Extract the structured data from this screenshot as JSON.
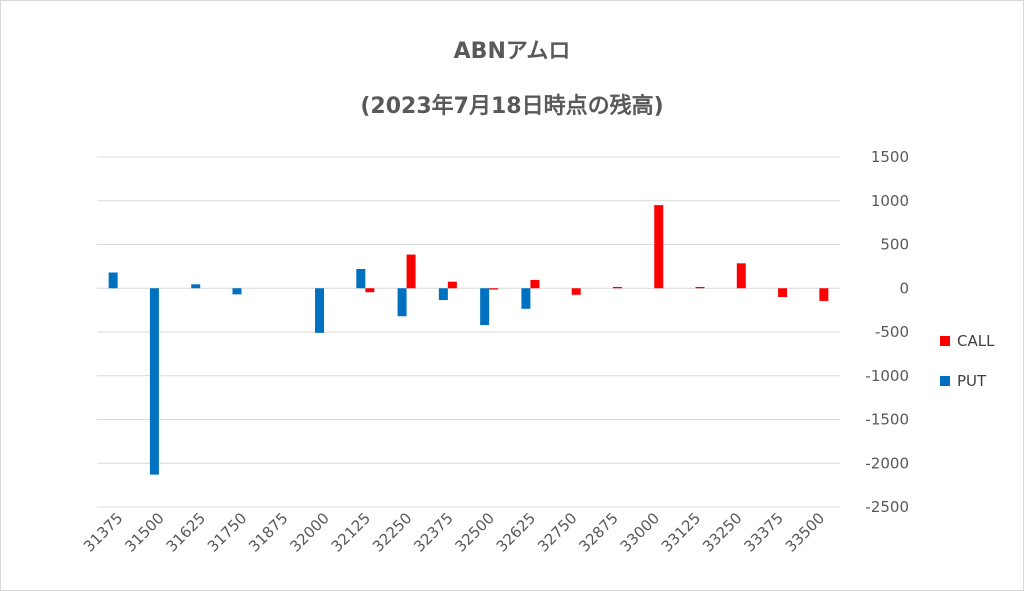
{
  "chart_data": {
    "type": "bar",
    "title": "ABNアムロ",
    "subtitle": "(2023年7月18日時点の残高)",
    "categories": [
      "31375",
      "31500",
      "31625",
      "31750",
      "31875",
      "32000",
      "32125",
      "32250",
      "32375",
      "32500",
      "32625",
      "32750",
      "32875",
      "33000",
      "33125",
      "33250",
      "33375",
      "33500"
    ],
    "series": [
      {
        "name": "CALL",
        "color": "#ff0000",
        "values": [
          0,
          0,
          0,
          0,
          0,
          0,
          -45,
          385,
          75,
          -15,
          95,
          -75,
          15,
          950,
          15,
          285,
          -100,
          -145
        ]
      },
      {
        "name": "PUT",
        "color": "#0070c0",
        "values": [
          180,
          -2130,
          45,
          -70,
          0,
          -510,
          220,
          -320,
          -135,
          -420,
          -235,
          0,
          0,
          0,
          0,
          0,
          0,
          0
        ]
      }
    ],
    "y_ticks": [
      "1500",
      "1000",
      "500",
      "0",
      "-500",
      "-1000",
      "-1500",
      "-2000",
      "-2500"
    ],
    "ylim": [
      -2500,
      1500
    ],
    "y_axis_side": "right",
    "grid": true,
    "legend_position": "right"
  }
}
